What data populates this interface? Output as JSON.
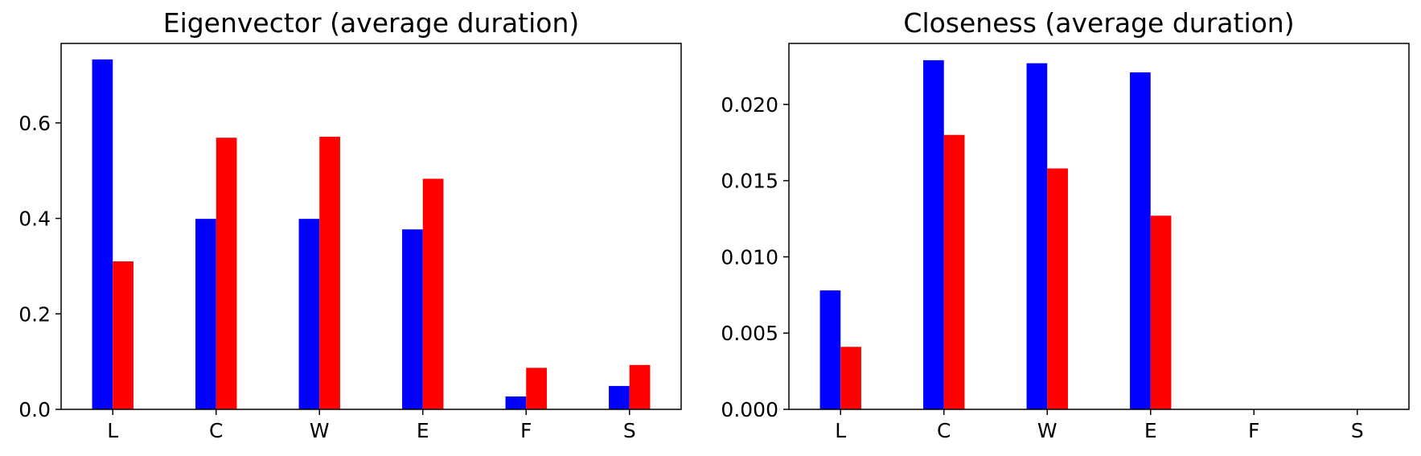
{
  "colors": {
    "series_a": "#0000ff",
    "series_b": "#ff0000"
  },
  "chart_data": [
    {
      "type": "bar",
      "title": "Eigenvector (average duration)",
      "categories": [
        "L",
        "C",
        "W",
        "E",
        "F",
        "S"
      ],
      "series": [
        {
          "values": [
            0.733,
            0.399,
            0.399,
            0.377,
            0.027,
            0.049
          ]
        },
        {
          "values": [
            0.31,
            0.569,
            0.571,
            0.483,
            0.087,
            0.093
          ]
        }
      ],
      "ylim": [
        0,
        0.7665
      ],
      "yticks": [
        0.0,
        0.2,
        0.4,
        0.6
      ],
      "ytick_labels": [
        "0.0",
        "0.2",
        "0.4",
        "0.6"
      ],
      "grid": false
    },
    {
      "type": "bar",
      "title": "Closeness (average duration)",
      "categories": [
        "L",
        "C",
        "W",
        "E",
        "F",
        "S"
      ],
      "series": [
        {
          "values": [
            0.0078,
            0.0229,
            0.0227,
            0.0221,
            0.0,
            0.0
          ]
        },
        {
          "values": [
            0.0041,
            0.018,
            0.0158,
            0.0127,
            0.0,
            0.0
          ]
        }
      ],
      "ylim": [
        0,
        0.024
      ],
      "yticks": [
        0.0,
        0.005,
        0.01,
        0.015,
        0.02
      ],
      "ytick_labels": [
        "0.000",
        "0.005",
        "0.010",
        "0.015",
        "0.020"
      ],
      "grid": false
    }
  ]
}
